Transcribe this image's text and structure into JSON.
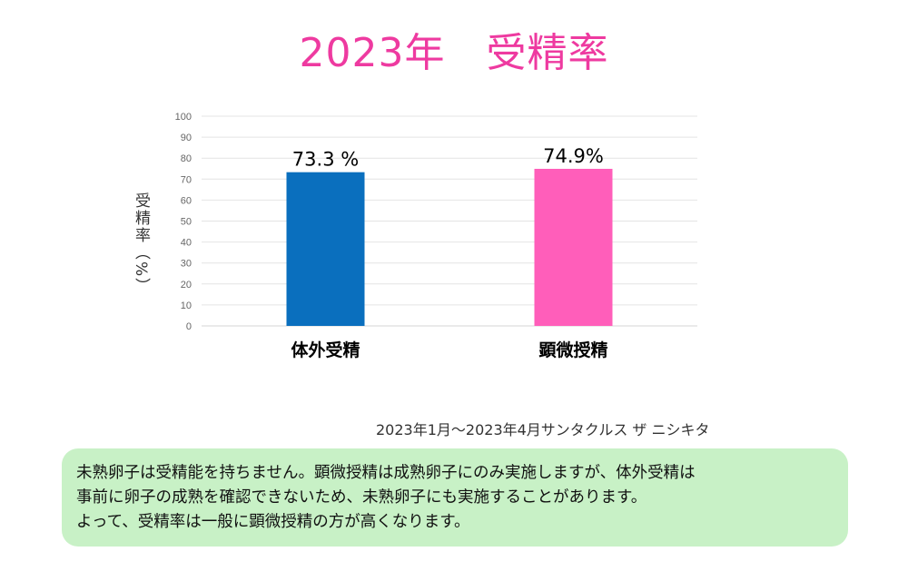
{
  "chart_data": {
    "type": "bar",
    "title": "2023年　受精率",
    "ylabel": "受精率（%）",
    "xlabel": "",
    "categories": [
      "体外受精",
      "顕微授精"
    ],
    "values": [
      73.3,
      74.9
    ],
    "data_labels": [
      "73.3 %",
      "74.9%"
    ],
    "bar_colors": [
      "#0a6fbe",
      "#ff5eba"
    ],
    "ylim": [
      0,
      100
    ],
    "yticks": [
      0,
      10,
      20,
      30,
      40,
      50,
      60,
      70,
      80,
      90,
      100
    ],
    "grid": true,
    "legend": "none"
  },
  "source": "2023年1月～2023年4月サンタクルス ザ ニシキタ",
  "note": {
    "lines": [
      "未熟卵子は受精能を持ちません。顕微授精は成熟卵子にのみ実施しますが、体外受精は",
      "事前に卵子の成熟を確認できないため、未熟卵子にも実施することがあります。",
      "よって、受精率は一般に顕微授精の方が高くなります。"
    ]
  },
  "colors": {
    "title": "#ee3aa0",
    "note_bg": "#c8f1c6"
  }
}
